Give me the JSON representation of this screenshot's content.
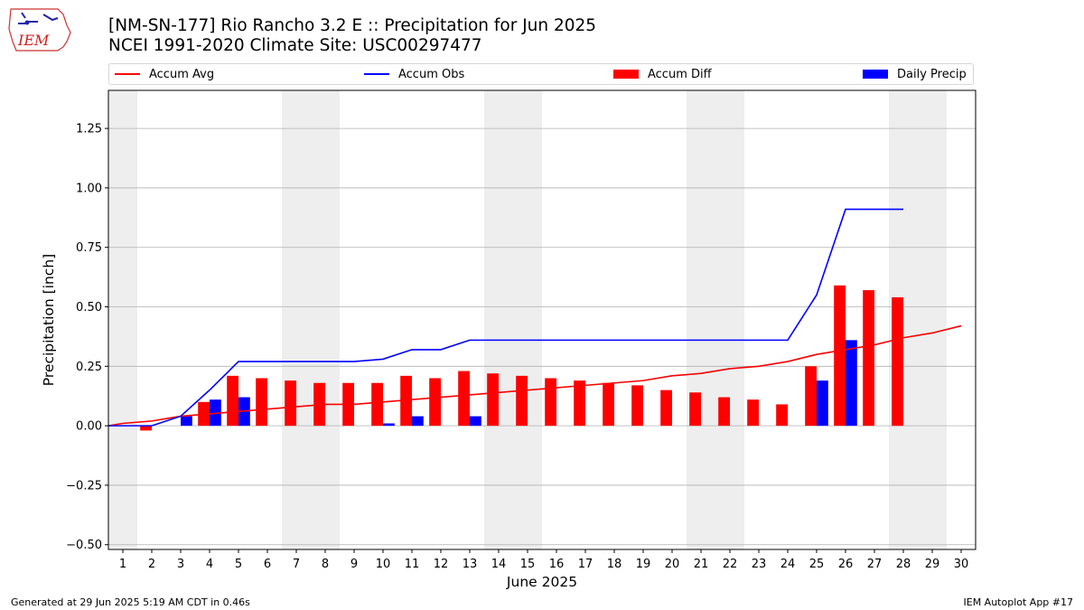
{
  "header": {
    "title_line1": "[NM-SN-177] Rio Rancho 3.2 E :: Precipitation for Jun 2025",
    "title_line2": "NCEI 1991-2020 Climate Site: USC00297477",
    "logo_text": "IEM"
  },
  "footer": {
    "left": "Generated at 29 Jun 2025 5:19 AM CDT in 0.46s",
    "right": "IEM Autoplot App #17"
  },
  "colors": {
    "accum_avg": "#ff0000",
    "accum_obs": "#0000ff",
    "accum_diff": "#ff0000",
    "daily_precip": "#0000ff",
    "weekend_shade": "#eeeeee",
    "grid": "#b0b0b0"
  },
  "chart_data": {
    "type": "bar",
    "xlabel": "June 2025",
    "ylabel": "Precipitation [inch]",
    "ylim": [
      -0.52,
      1.41
    ],
    "yticks": [
      "−0.50",
      "−0.25",
      "0.00",
      "0.25",
      "0.50",
      "0.75",
      "1.00",
      "1.25"
    ],
    "ytick_values": [
      -0.5,
      -0.25,
      0,
      0.25,
      0.5,
      0.75,
      1.0,
      1.25
    ],
    "xlim": [
      0.5,
      30.5
    ],
    "days": [
      1,
      2,
      3,
      4,
      5,
      6,
      7,
      8,
      9,
      10,
      11,
      12,
      13,
      14,
      15,
      16,
      17,
      18,
      19,
      20,
      21,
      22,
      23,
      24,
      25,
      26,
      27,
      28,
      29,
      30
    ],
    "day_labels": [
      "1",
      "2",
      "3",
      "4",
      "5",
      "6",
      "7",
      "8",
      "9",
      "10",
      "11",
      "12",
      "13",
      "14",
      "15",
      "16",
      "17",
      "18",
      "19",
      "20",
      "21",
      "22",
      "23",
      "24",
      "25",
      "26",
      "27",
      "28",
      "29",
      "30"
    ],
    "weekend_shaded_days": [
      1,
      7,
      8,
      14,
      15,
      21,
      22,
      28,
      29
    ],
    "grid": true,
    "legend_placement": "top",
    "legend": [
      "Accum Avg",
      "Accum Obs",
      "Accum Diff",
      "Daily Precip"
    ],
    "series": [
      {
        "name": "Accum Avg",
        "kind": "line",
        "x": [
          0.5,
          1,
          2,
          3,
          4,
          5,
          6,
          7,
          8,
          9,
          10,
          11,
          12,
          13,
          14,
          15,
          16,
          17,
          18,
          19,
          20,
          21,
          22,
          23,
          24,
          25,
          26,
          27,
          28,
          29,
          30
        ],
        "values": [
          0.0,
          0.01,
          0.02,
          0.04,
          0.05,
          0.06,
          0.07,
          0.08,
          0.09,
          0.09,
          0.1,
          0.11,
          0.12,
          0.13,
          0.14,
          0.15,
          0.16,
          0.17,
          0.18,
          0.19,
          0.21,
          0.22,
          0.24,
          0.25,
          0.27,
          0.3,
          0.32,
          0.34,
          0.37,
          0.39,
          0.42
        ]
      },
      {
        "name": "Accum Obs",
        "kind": "line",
        "x": [
          0.5,
          1,
          2,
          3,
          4,
          5,
          6,
          7,
          8,
          9,
          10,
          11,
          12,
          13,
          14,
          15,
          16,
          17,
          18,
          19,
          20,
          21,
          22,
          23,
          24,
          25,
          26,
          27,
          28
        ],
        "values": [
          0.0,
          0.0,
          0.0,
          0.04,
          0.15,
          0.27,
          0.27,
          0.27,
          0.27,
          0.27,
          0.28,
          0.32,
          0.32,
          0.36,
          0.36,
          0.36,
          0.36,
          0.36,
          0.36,
          0.36,
          0.36,
          0.36,
          0.36,
          0.36,
          0.36,
          0.55,
          0.91,
          0.91,
          0.91
        ]
      },
      {
        "name": "Accum Diff",
        "kind": "bar",
        "x": [
          1,
          2,
          3,
          4,
          5,
          6,
          7,
          8,
          9,
          10,
          11,
          12,
          13,
          14,
          15,
          16,
          17,
          18,
          19,
          20,
          21,
          22,
          23,
          24,
          25,
          26,
          27,
          28
        ],
        "values": [
          0.0,
          -0.02,
          0.0,
          0.1,
          0.21,
          0.2,
          0.19,
          0.18,
          0.18,
          0.18,
          0.21,
          0.2,
          0.23,
          0.22,
          0.21,
          0.2,
          0.19,
          0.18,
          0.17,
          0.15,
          0.14,
          0.12,
          0.11,
          0.09,
          0.25,
          0.59,
          0.57,
          0.54
        ]
      },
      {
        "name": "Daily Precip",
        "kind": "bar",
        "x": [
          1,
          2,
          3,
          4,
          5,
          6,
          7,
          8,
          9,
          10,
          11,
          12,
          13,
          14,
          15,
          16,
          17,
          18,
          19,
          20,
          21,
          22,
          23,
          24,
          25,
          26,
          27,
          28
        ],
        "values": [
          0,
          0,
          0.04,
          0.11,
          0.12,
          0,
          0,
          0,
          0,
          0.01,
          0.04,
          0,
          0.04,
          0,
          0,
          0,
          0,
          0,
          0,
          0,
          0,
          0,
          0,
          0,
          0.19,
          0.36,
          0,
          0
        ]
      }
    ]
  }
}
